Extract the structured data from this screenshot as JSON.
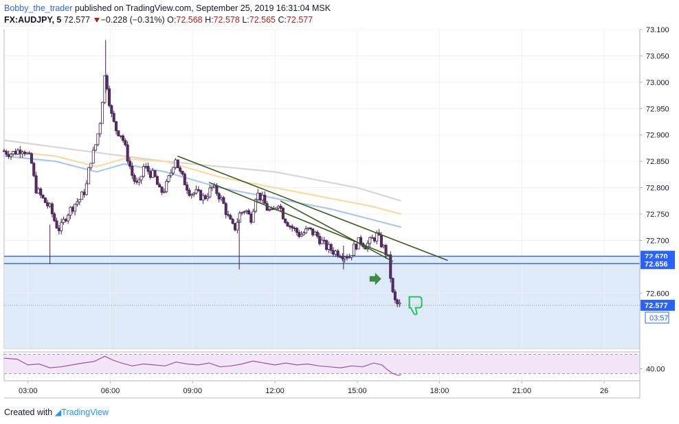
{
  "header": {
    "author": "Bobby_the_trader",
    "published_text": "published on TradingView.com, September 25, 2019 16:31:04 MSK",
    "symbol": "FX:AUDJPY, 5",
    "last": "72.577",
    "change": "−0.228 (−0.31%)",
    "o_label": "O:",
    "o_value": "72.568",
    "h_label": "H:",
    "h_value": "72.578",
    "l_label": "L:",
    "l_value": "72.565",
    "c_label": "C:",
    "c_value": "72.577"
  },
  "footer": {
    "created_with": "Created with",
    "brand": "TradingView"
  },
  "colors": {
    "candle_up": "#ffffff",
    "candle_down": "#5d2a6f",
    "zone_fill": "#dbe8f8",
    "hline": "#3f6fcf",
    "trendline": "#3d5a1e",
    "ma_gray": "#d9d5d2",
    "ma_orange": "#f7dba0",
    "ma_blue": "#a9c7ec",
    "rsi": "#9c4fa8",
    "rsi_band": "#f3e6f9"
  },
  "chart_data": {
    "type": "candlestick",
    "symbol": "FX:AUDJPY",
    "timeframe": "5",
    "y_range": [
      72.495,
      73.1
    ],
    "y_ticks": [
      "73.100",
      "73.050",
      "73.000",
      "72.950",
      "72.900",
      "72.850",
      "72.800",
      "72.750",
      "72.700",
      "72.600"
    ],
    "x_ticks": [
      "03:00",
      "06:00",
      "09:00",
      "12:00",
      "15:00",
      "18:00",
      "21:00",
      "26"
    ],
    "x_range_hours": [
      2.13,
      25.3
    ],
    "price_labels": [
      {
        "text": "72.670",
        "value": 72.67
      },
      {
        "text": "72.656",
        "value": 72.656
      },
      {
        "text": "72.577",
        "value": 72.577
      }
    ],
    "countdown": "03:57",
    "zone": {
      "low": 72.495,
      "high": 72.67
    },
    "horizontal_levels": [
      72.67,
      72.656
    ],
    "trendlines": [
      {
        "from": [
          8.45,
          72.86
        ],
        "to": [
          18.3,
          72.662
        ]
      },
      {
        "from": [
          12.2,
          72.775
        ],
        "to": [
          16.3,
          72.66
        ]
      },
      {
        "from": [
          9.6,
          72.81
        ],
        "to": [
          16.25,
          72.67
        ]
      }
    ],
    "candles_path": [
      [
        2.13,
        72.87
      ],
      [
        2.5,
        72.865
      ],
      [
        2.9,
        72.875
      ],
      [
        3.2,
        72.85
      ],
      [
        3.35,
        72.8
      ],
      [
        3.6,
        72.78
      ],
      [
        3.9,
        72.76
      ],
      [
        4.1,
        72.73
      ],
      [
        4.25,
        72.72
      ],
      [
        4.5,
        72.75
      ],
      [
        4.8,
        72.77
      ],
      [
        5.0,
        72.78
      ],
      [
        5.2,
        72.8
      ],
      [
        5.35,
        72.85
      ],
      [
        5.5,
        72.87
      ],
      [
        5.7,
        72.92
      ],
      [
        5.8,
        72.97
      ],
      [
        5.9,
        73.02
      ],
      [
        6.0,
        72.98
      ],
      [
        6.15,
        72.93
      ],
      [
        6.3,
        72.91
      ],
      [
        6.5,
        72.9
      ],
      [
        6.7,
        72.86
      ],
      [
        6.9,
        72.82
      ],
      [
        7.1,
        72.8
      ],
      [
        7.3,
        72.84
      ],
      [
        7.5,
        72.83
      ],
      [
        7.7,
        72.82
      ],
      [
        7.9,
        72.79
      ],
      [
        8.1,
        72.8
      ],
      [
        8.3,
        72.83
      ],
      [
        8.45,
        72.86
      ],
      [
        8.6,
        72.83
      ],
      [
        8.8,
        72.81
      ],
      [
        9.0,
        72.79
      ],
      [
        9.2,
        72.79
      ],
      [
        9.5,
        72.78
      ],
      [
        9.8,
        72.8
      ],
      [
        10.0,
        72.79
      ],
      [
        10.2,
        72.77
      ],
      [
        10.4,
        72.74
      ],
      [
        10.6,
        72.72
      ],
      [
        10.8,
        72.75
      ],
      [
        11.0,
        72.76
      ],
      [
        11.2,
        72.74
      ],
      [
        11.4,
        72.79
      ],
      [
        11.6,
        72.78
      ],
      [
        11.8,
        72.76
      ],
      [
        12.0,
        72.75
      ],
      [
        12.2,
        72.775
      ],
      [
        12.4,
        72.745
      ],
      [
        12.6,
        72.73
      ],
      [
        12.8,
        72.72
      ],
      [
        13.0,
        72.71
      ],
      [
        13.3,
        72.72
      ],
      [
        13.6,
        72.71
      ],
      [
        13.9,
        72.69
      ],
      [
        14.2,
        72.68
      ],
      [
        14.5,
        72.675
      ],
      [
        14.8,
        72.67
      ],
      [
        15.0,
        72.69
      ],
      [
        15.2,
        72.7
      ],
      [
        15.4,
        72.69
      ],
      [
        15.6,
        72.7
      ],
      [
        15.8,
        72.71
      ],
      [
        16.0,
        72.69
      ],
      [
        16.2,
        72.67
      ],
      [
        16.3,
        72.63
      ],
      [
        16.4,
        72.59
      ],
      [
        16.5,
        72.58
      ],
      [
        16.6,
        72.577
      ]
    ],
    "moving_averages": [
      {
        "color": "gray",
        "points": [
          [
            2.13,
            72.89
          ],
          [
            5.0,
            72.87
          ],
          [
            8.0,
            72.85
          ],
          [
            10.0,
            72.84
          ],
          [
            12.0,
            72.83
          ],
          [
            14.0,
            72.81
          ],
          [
            15.0,
            72.8
          ],
          [
            16.6,
            72.775
          ]
        ]
      },
      {
        "color": "orange",
        "points": [
          [
            2.13,
            72.87
          ],
          [
            4.0,
            72.86
          ],
          [
            5.5,
            72.84
          ],
          [
            6.5,
            72.855
          ],
          [
            8.0,
            72.85
          ],
          [
            10.0,
            72.82
          ],
          [
            12.0,
            72.8
          ],
          [
            14.0,
            72.78
          ],
          [
            15.5,
            72.765
          ],
          [
            16.6,
            72.75
          ]
        ]
      },
      {
        "color": "blue",
        "points": [
          [
            2.13,
            72.86
          ],
          [
            4.0,
            72.85
          ],
          [
            5.5,
            72.83
          ],
          [
            6.5,
            72.845
          ],
          [
            8.0,
            72.83
          ],
          [
            10.0,
            72.8
          ],
          [
            12.0,
            72.78
          ],
          [
            14.0,
            72.76
          ],
          [
            15.5,
            72.74
          ],
          [
            16.6,
            72.725
          ]
        ]
      }
    ],
    "annotations": [
      "right-arrow",
      "thumbs-down"
    ],
    "rsi": {
      "tick": "40.00",
      "tick_value": 40,
      "band": [
        30,
        70
      ],
      "path": [
        [
          2.13,
          62
        ],
        [
          2.6,
          60
        ],
        [
          3.0,
          48
        ],
        [
          3.4,
          50
        ],
        [
          3.8,
          42
        ],
        [
          4.2,
          44
        ],
        [
          4.6,
          48
        ],
        [
          5.0,
          52
        ],
        [
          5.4,
          55
        ],
        [
          5.8,
          66
        ],
        [
          6.1,
          58
        ],
        [
          6.4,
          52
        ],
        [
          6.8,
          46
        ],
        [
          7.2,
          50
        ],
        [
          7.6,
          48
        ],
        [
          8.0,
          46
        ],
        [
          8.4,
          54
        ],
        [
          8.8,
          50
        ],
        [
          9.2,
          48
        ],
        [
          9.6,
          52
        ],
        [
          10.0,
          44
        ],
        [
          10.4,
          46
        ],
        [
          10.8,
          50
        ],
        [
          11.2,
          56
        ],
        [
          11.6,
          52
        ],
        [
          12.0,
          48
        ],
        [
          12.4,
          52
        ],
        [
          12.8,
          48
        ],
        [
          13.2,
          50
        ],
        [
          13.6,
          46
        ],
        [
          14.0,
          44
        ],
        [
          14.4,
          42
        ],
        [
          14.8,
          46
        ],
        [
          15.2,
          44
        ],
        [
          15.6,
          52
        ],
        [
          15.9,
          48
        ],
        [
          16.1,
          38
        ],
        [
          16.3,
          30
        ],
        [
          16.5,
          26
        ],
        [
          16.6,
          28
        ]
      ]
    }
  }
}
